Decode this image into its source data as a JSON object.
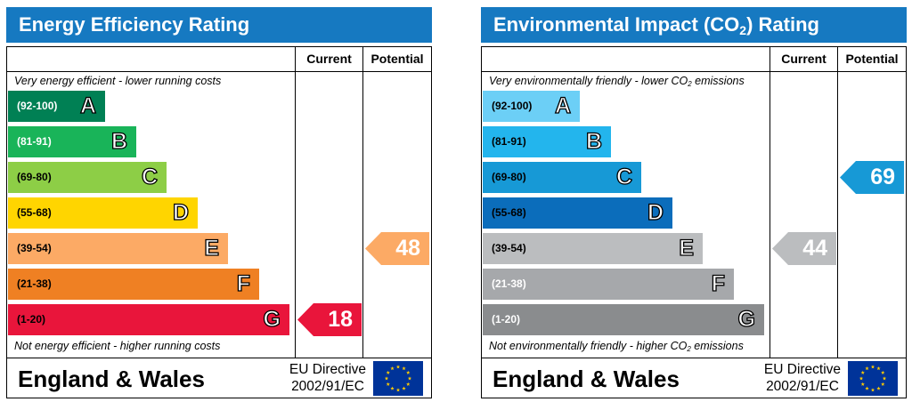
{
  "panels": [
    {
      "id": "energy",
      "title": "Energy Efficiency Rating",
      "title_main": "Energy Efficiency Rating",
      "title_sub": "",
      "title_tail": "",
      "col_current": "Current",
      "col_potential": "Potential",
      "caption_top": {
        "pre": "Very energy efficient - lower running costs",
        "sub": "",
        "post": ""
      },
      "caption_bottom": {
        "pre": "Not energy efficient - higher running costs",
        "sub": "",
        "post": ""
      },
      "footer_region": "England & Wales",
      "footer_directive_1": "EU Directive",
      "footer_directive_2": "2002/91/EC",
      "bands": [
        {
          "letter": "A",
          "range": "(92-100)",
          "color": "#008054",
          "light_text": true
        },
        {
          "letter": "B",
          "range": "(81-91)",
          "color": "#19b459",
          "light_text": true
        },
        {
          "letter": "C",
          "range": "(69-80)",
          "color": "#8dce46",
          "light_text": false
        },
        {
          "letter": "D",
          "range": "(55-68)",
          "color": "#ffd500",
          "light_text": false
        },
        {
          "letter": "E",
          "range": "(39-54)",
          "color": "#fcaa65",
          "light_text": false
        },
        {
          "letter": "F",
          "range": "(21-38)",
          "color": "#ef8023",
          "light_text": false
        },
        {
          "letter": "G",
          "range": "(1-20)",
          "color": "#e9153b",
          "light_text": false
        }
      ],
      "current": {
        "value": 18,
        "band": "G",
        "color": "#e9153b"
      },
      "potential": {
        "value": 48,
        "band": "E",
        "color": "#fcaa65"
      }
    },
    {
      "id": "env",
      "title": "Environmental Impact (CO2) Rating",
      "title_main": "Environmental Impact (CO",
      "title_sub": "2",
      "title_tail": ") Rating",
      "col_current": "Current",
      "col_potential": "Potential",
      "caption_top": {
        "pre": "Very environmentally friendly - lower CO",
        "sub": "2",
        "post": " emissions"
      },
      "caption_bottom": {
        "pre": "Not environmentally friendly - higher CO",
        "sub": "2",
        "post": " emissions"
      },
      "footer_region": "England & Wales",
      "footer_directive_1": "EU Directive",
      "footer_directive_2": "2002/91/EC",
      "bands": [
        {
          "letter": "A",
          "range": "(92-100)",
          "color": "#6ccff6",
          "light_text": false
        },
        {
          "letter": "B",
          "range": "(81-91)",
          "color": "#23b5ed",
          "light_text": false
        },
        {
          "letter": "C",
          "range": "(69-80)",
          "color": "#1799d6",
          "light_text": false
        },
        {
          "letter": "D",
          "range": "(55-68)",
          "color": "#0b6dbb",
          "light_text": false
        },
        {
          "letter": "E",
          "range": "(39-54)",
          "color": "#bbbdbf",
          "light_text": false
        },
        {
          "letter": "F",
          "range": "(21-38)",
          "color": "#a6a8ab",
          "light_text": true
        },
        {
          "letter": "G",
          "range": "(1-20)",
          "color": "#8a8c8e",
          "light_text": true
        }
      ],
      "current": {
        "value": 44,
        "band": "E",
        "color": "#bbbdbf"
      },
      "potential": {
        "value": 69,
        "band": "C",
        "color": "#1799d6"
      }
    }
  ],
  "chart_data": [
    {
      "type": "bar",
      "title": "Energy Efficiency Rating",
      "categories": [
        "(92-100) A",
        "(81-91) B",
        "(69-80) C",
        "(55-68) D",
        "(39-54) E",
        "(21-38) F",
        "(1-20) G"
      ],
      "columns": [
        "Current",
        "Potential"
      ],
      "current": 18,
      "potential": 48
    },
    {
      "type": "bar",
      "title": "Environmental Impact (CO2) Rating",
      "categories": [
        "(92-100) A",
        "(81-91) B",
        "(69-80) C",
        "(55-68) D",
        "(39-54) E",
        "(21-38) F",
        "(1-20) G"
      ],
      "columns": [
        "Current",
        "Potential"
      ],
      "current": 44,
      "potential": 69
    }
  ]
}
